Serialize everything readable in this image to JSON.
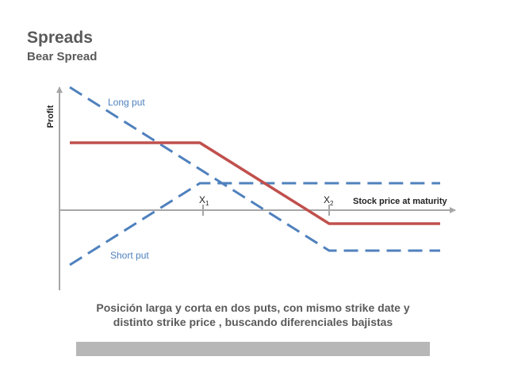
{
  "header": {
    "title": "Spreads",
    "subtitle": "Bear Spread"
  },
  "diagram": {
    "y_axis_label": "Profit",
    "x_axis_label": "Stock price at maturity",
    "strike_1": {
      "base": "X",
      "sub": "1"
    },
    "strike_2": {
      "base": "X",
      "sub": "2"
    },
    "long_put_label": "Long put",
    "short_put_label": "Short put",
    "colors": {
      "spread_line": "#c0504d",
      "put_lines": "#4f81bd",
      "axis": "#a6a6a6",
      "text": "#5a5a5a"
    }
  },
  "caption": {
    "line1": "Posición larga y corta en dos puts, con mismo strike date y",
    "line2": "distinto strike price , buscando diferenciales bajistas"
  }
}
